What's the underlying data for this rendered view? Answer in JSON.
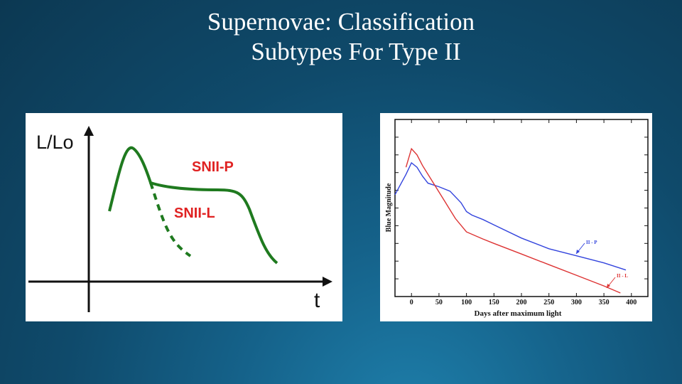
{
  "slide": {
    "title_line1": "Supernovae: Classification",
    "title_line2": "Subtypes For Type II"
  },
  "chart_data": [
    {
      "type": "line",
      "ylabel": "L/Lo",
      "xlabel": "t",
      "series": [
        {
          "name": "SNII-P",
          "color": "#1f7a1f",
          "style": "solid"
        },
        {
          "name": "SNII-L",
          "color": "#1f7a1f",
          "style": "dashed"
        }
      ]
    },
    {
      "type": "line",
      "xlabel": "Days after maximum light",
      "ylabel": "Blue Magnitude",
      "x_ticks": [
        0,
        50,
        100,
        150,
        200,
        250,
        300,
        350,
        400
      ],
      "xlim": [
        -30,
        430
      ],
      "ylim": [
        0,
        10
      ],
      "series": [
        {
          "name": "II - P",
          "color": "#3344dd",
          "x": [
            -30,
            -10,
            0,
            10,
            20,
            30,
            50,
            70,
            90,
            100,
            110,
            130,
            150,
            200,
            250,
            300,
            350,
            390
          ],
          "y": [
            5.75,
            6.9,
            7.55,
            7.3,
            6.8,
            6.4,
            6.2,
            5.95,
            5.3,
            4.8,
            4.6,
            4.35,
            4.05,
            3.3,
            2.7,
            2.3,
            1.9,
            1.5
          ]
        },
        {
          "name": "II - L",
          "color": "#dd3333",
          "x": [
            -10,
            0,
            10,
            20,
            40,
            60,
            80,
            100,
            130,
            150,
            200,
            250,
            300,
            350,
            380
          ],
          "y": [
            7.3,
            8.35,
            8.0,
            7.4,
            6.4,
            5.4,
            4.4,
            3.65,
            3.25,
            3.0,
            2.4,
            1.8,
            1.2,
            0.6,
            0.2
          ]
        }
      ]
    }
  ]
}
